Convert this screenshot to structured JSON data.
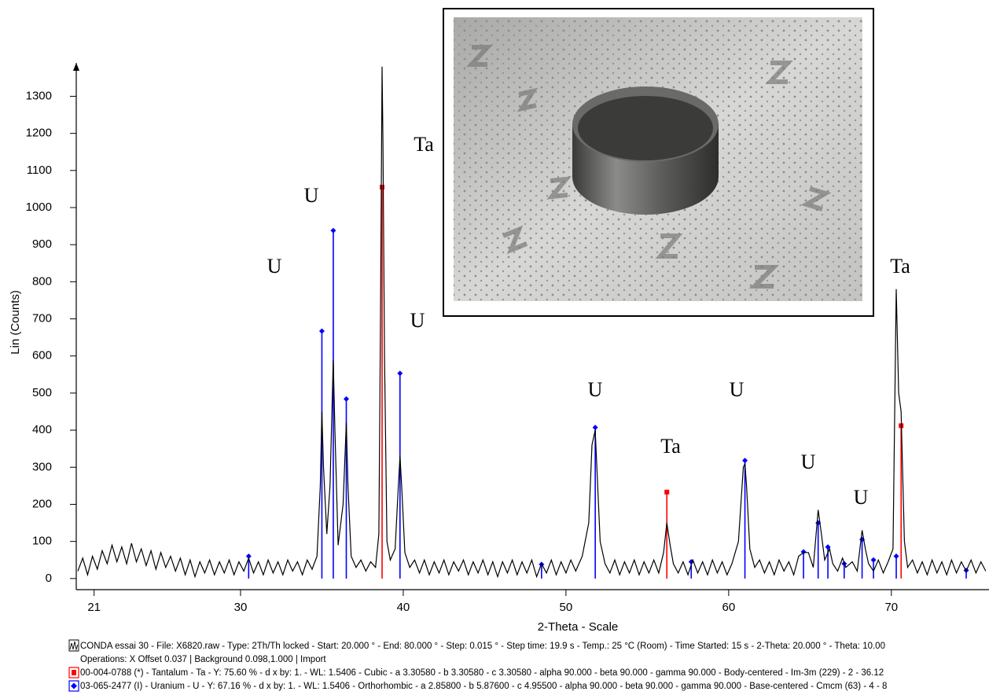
{
  "chart_data": {
    "type": "line",
    "x_label": "2-Theta - Scale",
    "y_label": "Lin (Counts)",
    "xlim": [
      20,
      76
    ],
    "ylim": [
      -30,
      1390
    ],
    "xticks": [
      21,
      30,
      40,
      50,
      60,
      70
    ],
    "yticks": [
      0,
      100,
      200,
      300,
      400,
      500,
      600,
      700,
      800,
      900,
      1000,
      1100,
      1200,
      1300
    ],
    "annotations": [
      "Ta",
      "U",
      "U",
      "U",
      "U",
      "U",
      "Ta",
      "U",
      "U",
      "Ta"
    ],
    "operations": "Operations: X Offset 0.037 | Background 0.098,1.000 | Import",
    "series": [
      {
        "name": "CONDA essai 30 - File: X6820.raw - Type: 2Th/Th locked - Start: 20.000 ° - End: 80.000 ° - Step: 0.015 ° - Step time: 19.9 s - Temp.: 25 °C (Room) - Time Started: 15 s - 2-Theta: 20.000 ° - Theta: 10.00",
        "color": "#000000",
        "style": "line",
        "x": [
          20.0,
          20.3,
          20.6,
          20.9,
          21.2,
          21.5,
          21.8,
          22.1,
          22.4,
          22.7,
          23.0,
          23.3,
          23.6,
          23.9,
          24.2,
          24.5,
          24.8,
          25.1,
          25.4,
          25.7,
          26.0,
          26.3,
          26.6,
          26.9,
          27.2,
          27.5,
          27.8,
          28.1,
          28.4,
          28.7,
          29.0,
          29.3,
          29.6,
          29.9,
          30.2,
          30.5,
          30.8,
          31.1,
          31.4,
          31.7,
          32.0,
          32.3,
          32.6,
          32.9,
          33.2,
          33.5,
          33.8,
          34.1,
          34.4,
          34.7,
          34.9,
          35.0,
          35.1,
          35.3,
          35.5,
          35.7,
          35.8,
          36.0,
          36.3,
          36.5,
          36.6,
          36.8,
          37.1,
          37.4,
          37.7,
          38.0,
          38.3,
          38.5,
          38.6,
          38.7,
          38.75,
          38.85,
          39.0,
          39.2,
          39.5,
          39.7,
          39.8,
          39.9,
          40.1,
          40.4,
          40.7,
          41.0,
          41.3,
          41.6,
          41.9,
          42.2,
          42.5,
          42.8,
          43.1,
          43.4,
          43.7,
          44.0,
          44.3,
          44.6,
          44.9,
          45.2,
          45.5,
          45.8,
          46.1,
          46.4,
          46.7,
          47.0,
          47.3,
          47.6,
          47.9,
          48.2,
          48.5,
          48.8,
          49.1,
          49.4,
          49.7,
          50.0,
          50.3,
          50.6,
          51.0,
          51.4,
          51.6,
          51.8,
          51.9,
          52.1,
          52.4,
          52.7,
          53.0,
          53.3,
          53.6,
          53.9,
          54.2,
          54.5,
          54.8,
          55.1,
          55.4,
          55.7,
          56.0,
          56.2,
          56.4,
          56.6,
          56.9,
          57.2,
          57.5,
          57.8,
          58.1,
          58.4,
          58.7,
          59.0,
          59.3,
          59.6,
          59.9,
          60.2,
          60.6,
          60.9,
          61.0,
          61.1,
          61.3,
          61.6,
          61.9,
          62.2,
          62.5,
          62.8,
          63.1,
          63.4,
          63.7,
          64.0,
          64.3,
          64.6,
          64.9,
          65.2,
          65.5,
          65.7,
          65.9,
          66.2,
          66.4,
          66.7,
          67.0,
          67.2,
          67.6,
          67.9,
          68.2,
          68.4,
          68.6,
          68.9,
          69.2,
          69.5,
          69.8,
          70.1,
          70.3,
          70.45,
          70.6,
          70.8,
          71.0,
          71.3,
          71.6,
          71.9,
          72.2,
          72.5,
          72.8,
          73.1,
          73.4,
          73.7,
          74.0,
          74.3,
          74.6,
          74.9,
          75.2,
          75.5,
          75.8
        ],
        "values": [
          20,
          55,
          10,
          60,
          25,
          75,
          40,
          90,
          45,
          85,
          40,
          95,
          45,
          80,
          35,
          75,
          25,
          70,
          30,
          60,
          20,
          55,
          10,
          50,
          5,
          45,
          15,
          50,
          10,
          45,
          15,
          50,
          10,
          45,
          20,
          55,
          15,
          45,
          10,
          50,
          15,
          45,
          10,
          50,
          20,
          45,
          10,
          50,
          25,
          60,
          250,
          450,
          300,
          120,
          250,
          590,
          400,
          90,
          200,
          420,
          250,
          60,
          30,
          50,
          20,
          45,
          30,
          120,
          700,
          1380,
          1180,
          600,
          100,
          50,
          80,
          250,
          330,
          250,
          70,
          30,
          50,
          15,
          50,
          10,
          45,
          15,
          50,
          10,
          45,
          20,
          50,
          10,
          45,
          15,
          50,
          10,
          45,
          5,
          45,
          15,
          50,
          10,
          45,
          15,
          50,
          5,
          40,
          15,
          50,
          10,
          45,
          15,
          50,
          20,
          60,
          150,
          360,
          400,
          300,
          100,
          40,
          15,
          50,
          10,
          45,
          15,
          50,
          10,
          45,
          15,
          50,
          15,
          70,
          150,
          90,
          40,
          15,
          45,
          10,
          50,
          15,
          45,
          10,
          50,
          15,
          45,
          10,
          40,
          100,
          300,
          310,
          250,
          80,
          30,
          50,
          15,
          45,
          10,
          50,
          20,
          45,
          10,
          60,
          70,
          70,
          30,
          185,
          120,
          50,
          80,
          40,
          20,
          55,
          30,
          45,
          20,
          130,
          80,
          40,
          20,
          50,
          15,
          45,
          80,
          780,
          500,
          450,
          100,
          30,
          50,
          15,
          45,
          10,
          50,
          15,
          45,
          10,
          50,
          15,
          45,
          20,
          50,
          15,
          45,
          20
        ]
      },
      {
        "name": "00-004-0788 (*) - Tantalum - Ta - Y: 75.60 % - d x by: 1. - WL: 1.5406 - Cubic - a 3.30580 - b 3.30580 - c 3.30580 - alpha 90.000 - beta 90.000 - gamma 90.000 - Body-centered - Im-3m (229) - 2 - 36.12",
        "color": "#ff0000",
        "style": "stick",
        "x": [
          38.7,
          56.2,
          70.6
        ],
        "values": [
          1055,
          233,
          412
        ]
      },
      {
        "name": "03-065-2477 (I) - Uranium - U - Y: 67.16 % - d x by: 1. - WL: 1.5406 - Orthorhombic - a 2.85800 - b 5.87600 - c 4.95500 - alpha 90.000 - beta 90.000 - gamma 90.000 - Base-centered - Cmcm (63) - 4 - 8",
        "color": "#0000ff",
        "style": "stick",
        "x": [
          30.5,
          35.0,
          35.7,
          36.5,
          39.8,
          48.5,
          51.8,
          57.7,
          61.0,
          64.6,
          65.5,
          66.1,
          67.1,
          68.2,
          68.9,
          70.3,
          74.6
        ],
        "values": [
          60,
          667,
          938,
          484,
          553,
          38,
          407,
          45,
          318,
          72,
          150,
          85,
          40,
          105,
          50,
          60,
          22
        ]
      }
    ]
  }
}
